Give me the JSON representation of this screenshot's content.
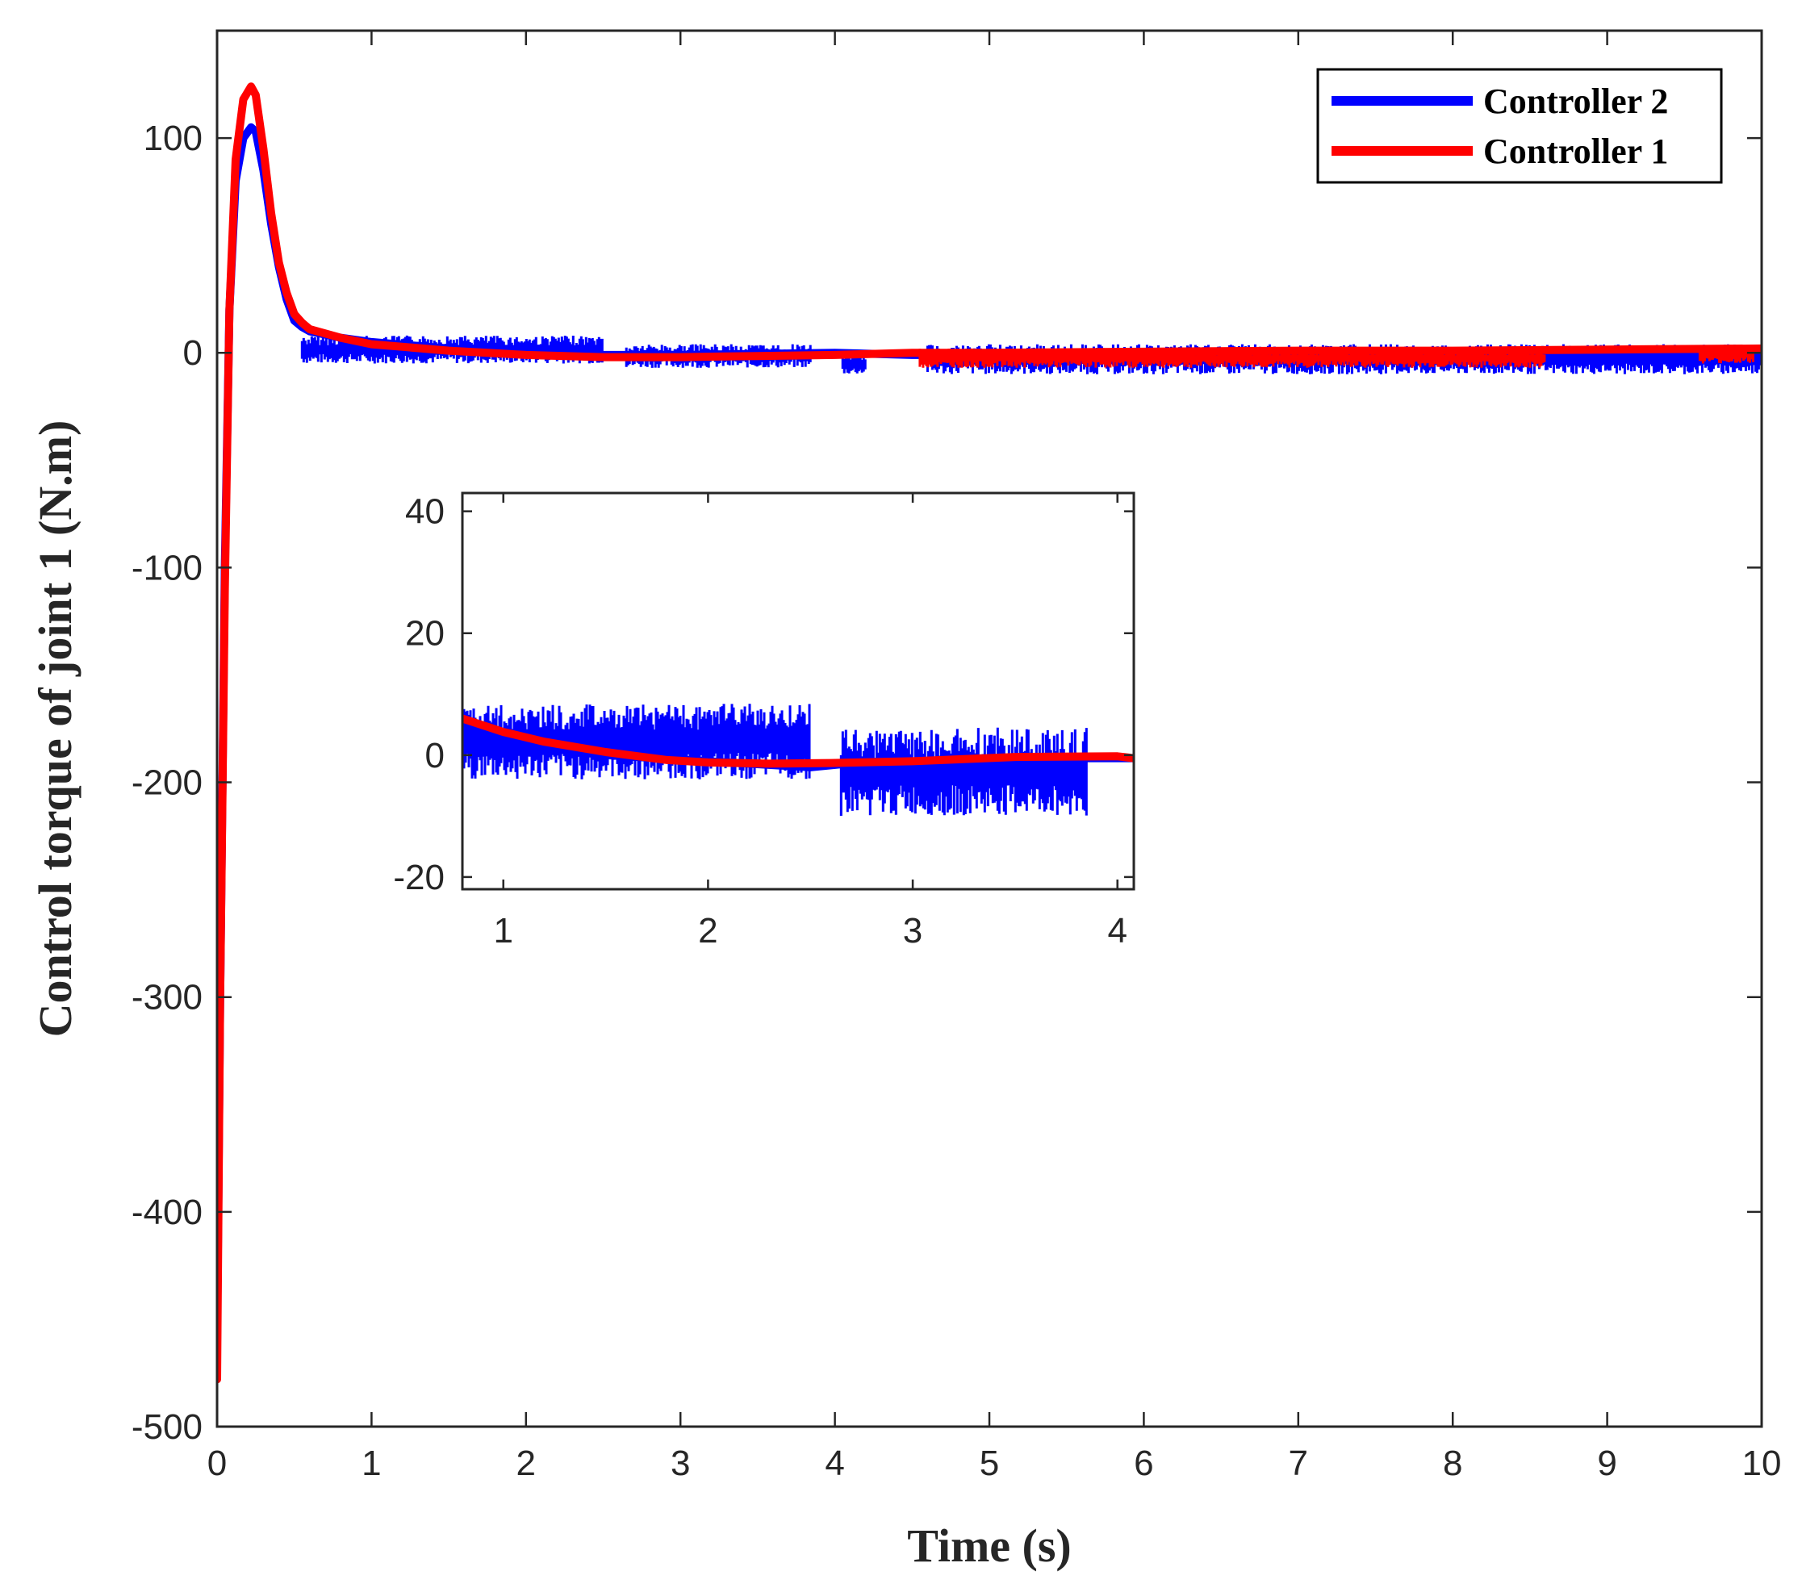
{
  "chart_data": [
    {
      "type": "line",
      "title": "",
      "xlabel": "Time (s)",
      "ylabel": "Control torque of joint 1 (N.m)",
      "xlim": [
        0,
        10
      ],
      "ylim": [
        -500,
        150
      ],
      "xticks": [
        0,
        1,
        2,
        3,
        4,
        5,
        6,
        7,
        8,
        9,
        10
      ],
      "yticks": [
        -500,
        -400,
        -300,
        -200,
        -100,
        0,
        100
      ],
      "grid": false,
      "legend_position": "top-right",
      "series": [
        {
          "name": "Controller 2",
          "color": "#0000ff",
          "x": [
            0,
            0.02,
            0.05,
            0.08,
            0.12,
            0.17,
            0.22,
            0.25,
            0.3,
            0.35,
            0.4,
            0.45,
            0.5,
            0.55,
            0.6,
            0.8,
            1.0,
            1.5,
            2.0,
            2.5,
            3.0,
            3.5,
            4.0,
            4.5,
            5.0,
            6.0,
            7.0,
            8.0,
            9.0,
            10.0
          ],
          "y": [
            -460,
            -300,
            -100,
            20,
            80,
            100,
            105,
            103,
            85,
            60,
            40,
            25,
            15,
            12,
            10,
            7,
            5,
            2,
            0,
            -1,
            -1,
            -0.5,
            0,
            -1,
            -1,
            -0.5,
            0,
            0,
            -1,
            -1
          ],
          "noise_segments": [
            {
              "x_start": 0.55,
              "x_end": 2.5,
              "y_low": -5,
              "y_high": 8
            },
            {
              "x_start": 2.65,
              "x_end": 3.85,
              "y_low": -7,
              "y_high": 4
            },
            {
              "x_start": 4.05,
              "x_end": 4.2,
              "y_low": -10,
              "y_high": 0
            },
            {
              "x_start": 4.6,
              "x_end": 10.0,
              "y_low": -10,
              "y_high": 4
            }
          ]
        },
        {
          "name": "Controller 1",
          "color": "#ff0000",
          "x": [
            0,
            0.02,
            0.05,
            0.08,
            0.12,
            0.17,
            0.22,
            0.25,
            0.3,
            0.35,
            0.4,
            0.45,
            0.5,
            0.55,
            0.6,
            0.8,
            1.0,
            1.5,
            2.0,
            2.5,
            3.0,
            3.5,
            4.0,
            4.5,
            5.0,
            6.0,
            7.0,
            8.0,
            9.0,
            10.0
          ],
          "y": [
            -478,
            -300,
            -110,
            20,
            90,
            118,
            124,
            120,
            95,
            65,
            42,
            28,
            18,
            14,
            11,
            7,
            4,
            1,
            -1,
            -2,
            -2,
            -1.5,
            -1,
            0,
            0,
            0.5,
            1,
            1,
            1.5,
            2
          ],
          "noise_segments": [
            {
              "x_start": 4.55,
              "x_end": 8.6,
              "y_low": -7,
              "y_high": 2
            },
            {
              "x_start": 9.6,
              "x_end": 9.95,
              "y_low": -5,
              "y_high": 3
            }
          ]
        }
      ]
    },
    {
      "type": "line",
      "title": "",
      "role": "inset-zoom",
      "xlabel": "",
      "ylabel": "",
      "xlim": [
        0.8,
        4.08
      ],
      "ylim": [
        -22,
        43
      ],
      "xticks": [
        1,
        2,
        3,
        4
      ],
      "yticks": [
        -20,
        0,
        20,
        40
      ],
      "grid": false,
      "series": [
        {
          "name": "Controller 2",
          "color": "#0000ff",
          "x": [
            0.8,
            1.0,
            1.5,
            2.0,
            2.5,
            2.65,
            3.0,
            3.5,
            3.85,
            4.0,
            4.08
          ],
          "y": [
            3,
            2,
            0,
            -1,
            -2,
            -1.5,
            -1.5,
            -1,
            -0.5,
            -0.5,
            -0.5
          ],
          "noise_segments": [
            {
              "x_start": 0.8,
              "x_end": 2.5,
              "y_low": -4,
              "y_high": 8.5
            },
            {
              "x_start": 2.65,
              "x_end": 3.85,
              "y_low": -10,
              "y_high": 4.5
            }
          ]
        },
        {
          "name": "Controller 1",
          "color": "#ff0000",
          "x": [
            0.8,
            1.0,
            1.2,
            1.5,
            1.8,
            2.0,
            2.3,
            2.6,
            3.0,
            3.5,
            4.0,
            4.08
          ],
          "y": [
            6,
            3.8,
            2.2,
            0.5,
            -0.8,
            -1.2,
            -1.4,
            -1.3,
            -1.0,
            -0.3,
            -0.2,
            -0.5
          ]
        }
      ]
    }
  ],
  "legend": {
    "items": [
      {
        "label": "Controller 2",
        "color": "#0000ff"
      },
      {
        "label": "Controller 1",
        "color": "#ff0000"
      }
    ]
  }
}
